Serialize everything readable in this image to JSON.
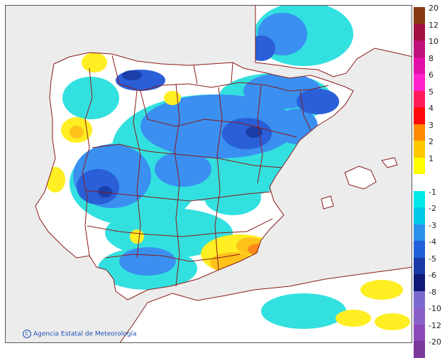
{
  "map": {
    "credit": "Agencia Estatal de Meteorología",
    "colors": {
      "sea": "#ececec",
      "land": "#ffffff",
      "border": "#8b1a1a",
      "cold1": "#33e0e0",
      "cold2": "#3a8ff0",
      "cold3": "#2a5fd8",
      "cold4": "#1a3fa8",
      "warm1": "#ffee22",
      "warm2": "#ffc21a",
      "warm3": "#ff8a1a",
      "warm4": "#ff2a0a"
    }
  },
  "legend": {
    "items": [
      {
        "label": "20",
        "color": "#8a3a10"
      },
      {
        "label": "12",
        "color": "#a01040"
      },
      {
        "label": "10",
        "color": "#c0107a"
      },
      {
        "label": "8",
        "color": "#e010a8"
      },
      {
        "label": "6",
        "color": "#ff22cc"
      },
      {
        "label": "5",
        "color": "#ff1a5a"
      },
      {
        "label": "4",
        "color": "#ff0a0a"
      },
      {
        "label": "3",
        "color": "#ff8a00"
      },
      {
        "label": "2",
        "color": "#ffc800"
      },
      {
        "label": "1",
        "color": "#ffff00"
      },
      {
        "label": "",
        "color": "#ffffff"
      },
      {
        "label": "-1",
        "color": "#00e8e8"
      },
      {
        "label": "-2",
        "color": "#00c8e8"
      },
      {
        "label": "-3",
        "color": "#2a90e8"
      },
      {
        "label": "-4",
        "color": "#2060d8"
      },
      {
        "label": "-5",
        "color": "#1a3aa8"
      },
      {
        "label": "-6",
        "color": "#101a78"
      },
      {
        "label": "-8",
        "color": "#7a6ad0"
      },
      {
        "label": "-10",
        "color": "#8a60c8"
      },
      {
        "label": "-12",
        "color": "#8a48b8"
      },
      {
        "label": "-20",
        "color": "#7a3a9a"
      }
    ]
  }
}
